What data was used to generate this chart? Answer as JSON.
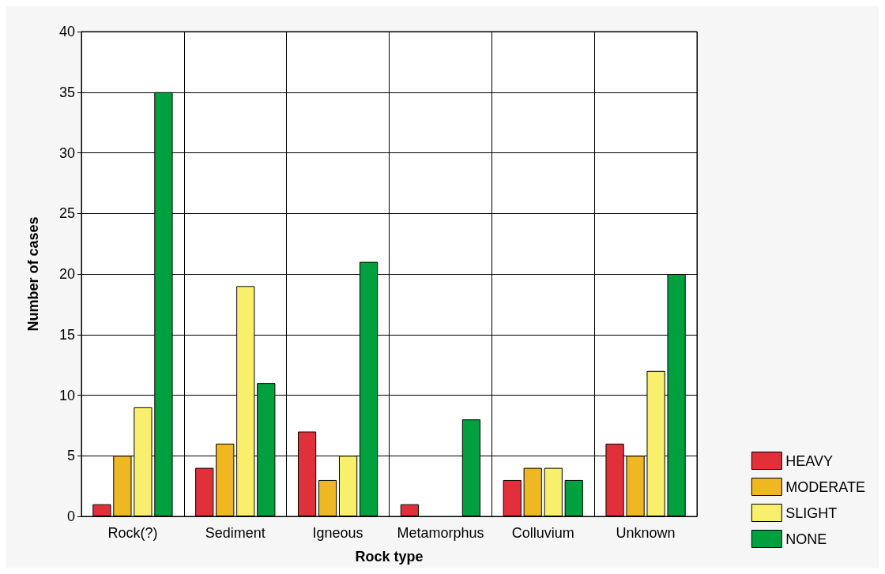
{
  "chart_data": {
    "type": "bar",
    "xlabel": "Rock type",
    "ylabel": "Number of cases",
    "categories": [
      "Rock(?)",
      "Sediment",
      "Igneous",
      "Metamorphus",
      "Colluvium",
      "Unknown"
    ],
    "series": [
      {
        "name": "HEAVY",
        "color": "#e1303a",
        "values": [
          1,
          4,
          7,
          1,
          3,
          6
        ]
      },
      {
        "name": "MODERATE",
        "color": "#efb722",
        "values": [
          5,
          6,
          3,
          0,
          4,
          5
        ]
      },
      {
        "name": "SLIGHT",
        "color": "#f8f06c",
        "values": [
          9,
          19,
          5,
          0,
          4,
          12
        ]
      },
      {
        "name": "NONE",
        "color": "#00a03e",
        "values": [
          35,
          11,
          21,
          8,
          3,
          20
        ]
      }
    ],
    "ylim": [
      0,
      40
    ],
    "yticks": [
      0,
      5,
      10,
      15,
      20,
      25,
      30,
      35,
      40
    ],
    "grid": true,
    "legend": "bottom right"
  }
}
